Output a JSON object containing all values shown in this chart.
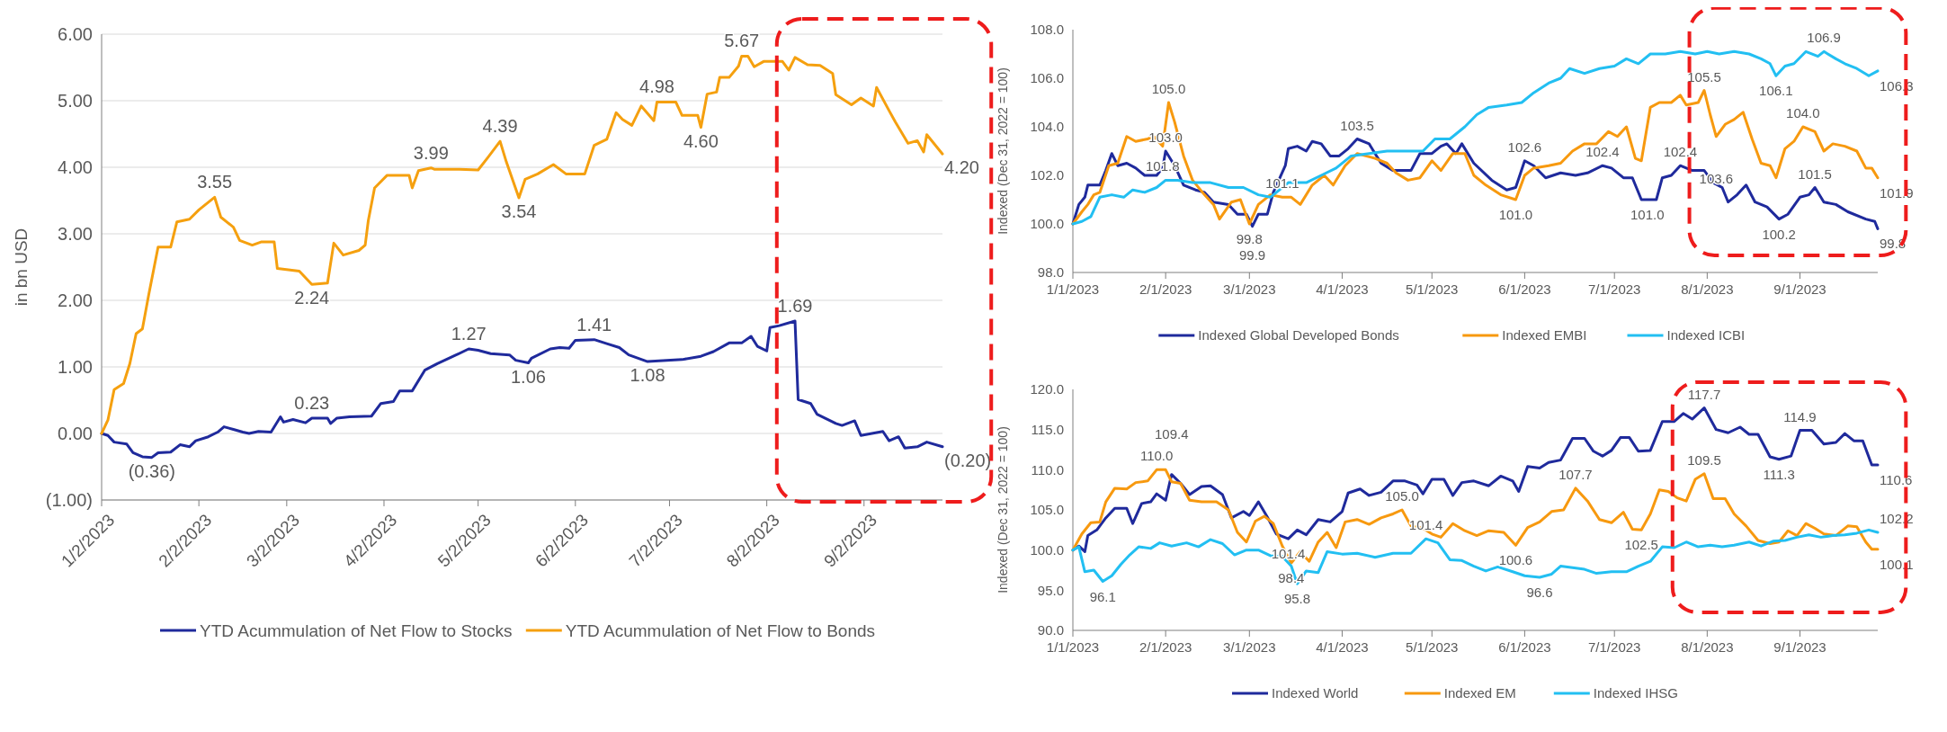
{
  "chart_data": [
    {
      "type": "line",
      "ylabel": "in bn USD",
      "xlim": [
        "2023-01-02",
        "2023-09-27"
      ],
      "ylim": [
        -1,
        6
      ],
      "xticks": [
        {
          "value": "2023-01-02",
          "label": "1/2/2023"
        },
        {
          "value": "2023-02-02",
          "label": "2/2/2023"
        },
        {
          "value": "2023-03-02",
          "label": "3/2/2023"
        },
        {
          "value": "2023-04-02",
          "label": "4/2/2023"
        },
        {
          "value": "2023-05-02",
          "label": "5/2/2023"
        },
        {
          "value": "2023-06-02",
          "label": "6/2/2023"
        },
        {
          "value": "2023-07-02",
          "label": "7/2/2023"
        },
        {
          "value": "2023-08-02",
          "label": "8/2/2023"
        },
        {
          "value": "2023-09-02",
          "label": "9/2/2023"
        }
      ],
      "yticks": [
        {
          "value": -1,
          "label": "(1.00)"
        },
        {
          "value": 0,
          "label": "0.00"
        },
        {
          "value": 1,
          "label": "1.00"
        },
        {
          "value": 2,
          "label": "2.00"
        },
        {
          "value": 3,
          "label": "3.00"
        },
        {
          "value": 4,
          "label": "4.00"
        },
        {
          "value": 5,
          "label": "5.00"
        },
        {
          "value": 6,
          "label": "6.00"
        }
      ],
      "grid": "y",
      "legend": "bottom",
      "series": [
        {
          "name": "YTD Acummulation of Net Flow to Stocks",
          "color": "#1f2a9c",
          "x": [
            "2023-01-02",
            "2023-01-04",
            "2023-01-06",
            "2023-01-10",
            "2023-01-12",
            "2023-01-15",
            "2023-01-18",
            "2023-01-20",
            "2023-01-24",
            "2023-01-27",
            "2023-01-30",
            "2023-02-01",
            "2023-02-05",
            "2023-02-08",
            "2023-02-10",
            "2023-02-13",
            "2023-02-16",
            "2023-02-18",
            "2023-02-21",
            "2023-02-25",
            "2023-02-28",
            "2023-03-01",
            "2023-03-04",
            "2023-03-08",
            "2023-03-10",
            "2023-03-15",
            "2023-03-16",
            "2023-03-18",
            "2023-03-22",
            "2023-03-29",
            "2023-04-01",
            "2023-04-05",
            "2023-04-07",
            "2023-04-11",
            "2023-04-15",
            "2023-04-19",
            "2023-04-25",
            "2023-04-29",
            "2023-05-02",
            "2023-05-06",
            "2023-05-12",
            "2023-05-14",
            "2023-05-18",
            "2023-05-19",
            "2023-05-25",
            "2023-05-28",
            "2023-05-31",
            "2023-06-02",
            "2023-06-08",
            "2023-06-12",
            "2023-06-16",
            "2023-06-19",
            "2023-06-25",
            "2023-07-06",
            "2023-07-12",
            "2023-07-16",
            "2023-07-21",
            "2023-07-25",
            "2023-07-28",
            "2023-07-30",
            "2023-08-02",
            "2023-08-03",
            "2023-08-06",
            "2023-08-11",
            "2023-08-12",
            "2023-08-16",
            "2023-08-18",
            "2023-08-24",
            "2023-08-26",
            "2023-08-30",
            "2023-09-01",
            "2023-09-08",
            "2023-09-10",
            "2023-09-13",
            "2023-09-15",
            "2023-09-19",
            "2023-09-22",
            "2023-09-27"
          ],
          "values": [
            0,
            -0.03,
            -0.13,
            -0.16,
            -0.29,
            -0.35,
            -0.36,
            -0.29,
            -0.28,
            -0.17,
            -0.2,
            -0.11,
            -0.05,
            0.02,
            0.1,
            0.06,
            0.02,
            0,
            0.03,
            0.02,
            0.25,
            0.17,
            0.21,
            0.16,
            0.23,
            0.23,
            0.15,
            0.23,
            0.25,
            0.26,
            0.45,
            0.48,
            0.64,
            0.64,
            0.95,
            1.05,
            1.18,
            1.27,
            1.25,
            1.2,
            1.18,
            1.1,
            1.06,
            1.13,
            1.27,
            1.29,
            1.28,
            1.4,
            1.41,
            1.35,
            1.29,
            1.18,
            1.08,
            1.11,
            1.16,
            1.23,
            1.36,
            1.36,
            1.46,
            1.31,
            1.24,
            1.59,
            1.62,
            1.69,
            0.51,
            0.45,
            0.29,
            0.15,
            0.12,
            0.19,
            -0.03,
            0.03,
            -0.11,
            -0.05,
            -0.22,
            -0.2,
            -0.13,
            -0.2
          ]
        },
        {
          "name": "YTD Acummulation of Net Flow to Bonds",
          "color": "#f5a00f",
          "x": [
            "2023-01-02",
            "2023-01-04",
            "2023-01-06",
            "2023-01-09",
            "2023-01-11",
            "2023-01-13",
            "2023-01-15",
            "2023-01-17",
            "2023-01-20",
            "2023-01-24",
            "2023-01-26",
            "2023-01-30",
            "2023-02-02",
            "2023-02-07",
            "2023-02-09",
            "2023-02-13",
            "2023-02-15",
            "2023-02-19",
            "2023-02-22",
            "2023-02-26",
            "2023-02-27",
            "2023-03-06",
            "2023-03-10",
            "2023-03-15",
            "2023-03-17",
            "2023-03-20",
            "2023-03-25",
            "2023-03-27",
            "2023-03-28",
            "2023-03-30",
            "2023-04-03",
            "2023-04-10",
            "2023-04-11",
            "2023-04-13",
            "2023-04-17",
            "2023-04-18",
            "2023-04-26",
            "2023-05-02",
            "2023-05-05",
            "2023-05-09",
            "2023-05-11",
            "2023-05-15",
            "2023-05-17",
            "2023-05-21",
            "2023-05-26",
            "2023-05-30",
            "2023-06-05",
            "2023-06-08",
            "2023-06-12",
            "2023-06-15",
            "2023-06-17",
            "2023-06-20",
            "2023-06-23",
            "2023-06-27",
            "2023-06-28",
            "2023-07-04",
            "2023-07-06",
            "2023-07-11",
            "2023-07-12",
            "2023-07-14",
            "2023-07-17",
            "2023-07-18",
            "2023-07-21",
            "2023-07-24",
            "2023-07-25",
            "2023-07-27",
            "2023-07-29",
            "2023-08-01",
            "2023-08-07",
            "2023-08-09",
            "2023-08-11",
            "2023-08-15",
            "2023-08-19",
            "2023-08-23",
            "2023-08-24",
            "2023-08-29",
            "2023-09-01",
            "2023-09-05",
            "2023-09-06",
            "2023-09-10",
            "2023-09-12",
            "2023-09-16",
            "2023-09-19",
            "2023-09-21",
            "2023-09-22",
            "2023-09-27"
          ],
          "values": [
            0,
            0.2,
            0.66,
            0.75,
            1.05,
            1.5,
            1.57,
            2.08,
            2.8,
            2.8,
            3.18,
            3.22,
            3.36,
            3.55,
            3.25,
            3.1,
            2.9,
            2.83,
            2.88,
            2.88,
            2.48,
            2.44,
            2.24,
            2.26,
            2.86,
            2.68,
            2.75,
            2.83,
            3.2,
            3.69,
            3.88,
            3.88,
            3.69,
            3.95,
            3.99,
            3.97,
            3.97,
            3.96,
            4.14,
            4.39,
            4.08,
            3.54,
            3.82,
            3.9,
            4.04,
            3.9,
            3.9,
            4.33,
            4.42,
            4.82,
            4.72,
            4.63,
            4.92,
            4.7,
            4.98,
            4.98,
            4.78,
            4.78,
            4.6,
            5.1,
            5.13,
            5.35,
            5.35,
            5.52,
            5.67,
            5.67,
            5.51,
            5.59,
            5.59,
            5.46,
            5.65,
            5.54,
            5.53,
            5.41,
            5.09,
            4.94,
            5.04,
            4.92,
            5.2,
            4.85,
            4.68,
            4.36,
            4.4,
            4.23,
            4.49,
            4.2
          ]
        }
      ],
      "annotations": [
        {
          "text": "3.55",
          "x": "2023-02-07",
          "y": 3.55
        },
        {
          "text": "2.24",
          "x": "2023-03-10",
          "y": 2.24
        },
        {
          "text": "3.99",
          "x": "2023-04-17",
          "y": 3.99
        },
        {
          "text": "4.39",
          "x": "2023-05-09",
          "y": 4.39
        },
        {
          "text": "3.54",
          "x": "2023-05-15",
          "y": 3.54
        },
        {
          "text": "4.98",
          "x": "2023-06-28",
          "y": 4.98
        },
        {
          "text": "4.60",
          "x": "2023-07-12",
          "y": 4.6
        },
        {
          "text": "5.67",
          "x": "2023-07-25",
          "y": 5.67
        },
        {
          "text": "4.20",
          "x": "2023-09-27",
          "y": 4.2
        },
        {
          "text": "(0.36)",
          "x": "2023-01-18",
          "y": -0.36
        },
        {
          "text": "0.23",
          "x": "2023-03-10",
          "y": 0.23
        },
        {
          "text": "1.27",
          "x": "2023-04-29",
          "y": 1.27
        },
        {
          "text": "1.06",
          "x": "2023-05-18",
          "y": 1.06
        },
        {
          "text": "1.41",
          "x": "2023-06-08",
          "y": 1.41
        },
        {
          "text": "1.08",
          "x": "2023-06-25",
          "y": 1.08
        },
        {
          "text": "1.69",
          "x": "2023-08-11",
          "y": 1.69
        },
        {
          "text": "(0.20)",
          "x": "2023-09-27",
          "y": -0.2
        }
      ]
    },
    {
      "type": "line",
      "ylabel": "Indexed (Dec 31, 2022 = 100)",
      "xlim": [
        "2023-01-01",
        "2023-09-27"
      ],
      "ylim": [
        98,
        108
      ],
      "xticks": [
        {
          "value": "2023-01-01",
          "label": "1/1/2023"
        },
        {
          "value": "2023-02-01",
          "label": "2/1/2023"
        },
        {
          "value": "2023-03-01",
          "label": "3/1/2023"
        },
        {
          "value": "2023-04-01",
          "label": "4/1/2023"
        },
        {
          "value": "2023-05-01",
          "label": "5/1/2023"
        },
        {
          "value": "2023-06-01",
          "label": "6/1/2023"
        },
        {
          "value": "2023-07-01",
          "label": "7/1/2023"
        },
        {
          "value": "2023-08-01",
          "label": "8/1/2023"
        },
        {
          "value": "2023-09-01",
          "label": "9/1/2023"
        }
      ],
      "yticks": [
        {
          "value": 98,
          "label": "98.0"
        },
        {
          "value": 100,
          "label": "100.0"
        },
        {
          "value": 102,
          "label": "102.0"
        },
        {
          "value": 104,
          "label": "104.0"
        },
        {
          "value": 106,
          "label": "106.0"
        },
        {
          "value": 108,
          "label": "108.0"
        }
      ],
      "legend": "bottom",
      "series": [
        {
          "name": "Indexed Global Developed Bonds",
          "color": "#1f2a9c",
          "x": [
            "2023-01-01",
            "2023-01-03",
            "2023-01-05",
            "2023-01-06",
            "2023-01-10",
            "2023-01-12",
            "2023-01-14",
            "2023-01-16",
            "2023-01-19",
            "2023-01-22",
            "2023-01-25",
            "2023-01-29",
            "2023-01-31",
            "2023-02-01",
            "2023-02-04",
            "2023-02-07",
            "2023-02-11",
            "2023-02-14",
            "2023-02-17",
            "2023-02-22",
            "2023-02-25",
            "2023-02-28",
            "2023-03-02",
            "2023-03-04",
            "2023-03-07",
            "2023-03-09",
            "2023-03-13",
            "2023-03-14",
            "2023-03-17",
            "2023-03-20",
            "2023-03-22",
            "2023-03-25",
            "2023-03-28",
            "2023-03-31",
            "2023-04-03",
            "2023-04-06",
            "2023-04-10",
            "2023-04-14",
            "2023-04-18",
            "2023-04-24",
            "2023-04-27",
            "2023-05-01",
            "2023-05-04",
            "2023-05-06",
            "2023-05-09",
            "2023-05-11",
            "2023-05-15",
            "2023-05-21",
            "2023-05-26",
            "2023-05-29",
            "2023-06-01",
            "2023-06-04",
            "2023-06-08",
            "2023-06-13",
            "2023-06-18",
            "2023-06-22",
            "2023-06-27",
            "2023-06-30",
            "2023-07-04",
            "2023-07-07",
            "2023-07-10",
            "2023-07-15",
            "2023-07-17",
            "2023-07-20",
            "2023-07-23",
            "2023-07-27",
            "2023-07-31",
            "2023-08-03",
            "2023-08-06",
            "2023-08-08",
            "2023-08-11",
            "2023-08-14",
            "2023-08-17",
            "2023-08-21",
            "2023-08-25",
            "2023-08-28",
            "2023-09-01",
            "2023-09-04",
            "2023-09-06",
            "2023-09-09",
            "2023-09-13",
            "2023-09-17",
            "2023-09-23",
            "2023-09-26",
            "2023-09-27"
          ],
          "values": [
            100,
            100.8,
            101.1,
            101.6,
            101.6,
            102.2,
            102.9,
            102.4,
            102.5,
            102.3,
            102,
            102,
            102.3,
            103,
            102.4,
            101.6,
            101.4,
            101.3,
            100.9,
            100.8,
            100.4,
            100.4,
            99.9,
            100.4,
            100.4,
            101.3,
            102.4,
            103.1,
            103.2,
            103,
            103.4,
            103.3,
            102.8,
            102.8,
            103.1,
            103.5,
            103.3,
            102.5,
            102.2,
            102.2,
            102.9,
            102.9,
            103.2,
            103.3,
            102.9,
            103.3,
            102.5,
            101.8,
            101.4,
            101.5,
            102.6,
            102.4,
            101.9,
            102.1,
            102,
            102.1,
            102.4,
            102.3,
            101.9,
            101.9,
            101,
            101,
            101.9,
            102,
            102.4,
            102.2,
            102.2,
            101.7,
            101.5,
            100.9,
            101.2,
            101.6,
            100.9,
            100.7,
            100.2,
            100.4,
            101.1,
            101.2,
            101.5,
            100.9,
            100.8,
            100.5,
            100.2,
            100.1,
            99.8
          ]
        },
        {
          "name": "Indexed EMBI",
          "color": "#f7990f",
          "x": [
            "2023-01-01",
            "2023-01-04",
            "2023-01-06",
            "2023-01-08",
            "2023-01-10",
            "2023-01-13",
            "2023-01-16",
            "2023-01-19",
            "2023-01-22",
            "2023-01-26",
            "2023-01-28",
            "2023-01-31",
            "2023-02-02",
            "2023-02-04",
            "2023-02-07",
            "2023-02-10",
            "2023-02-14",
            "2023-02-17",
            "2023-02-19",
            "2023-02-23",
            "2023-02-26",
            "2023-03-01",
            "2023-03-04",
            "2023-03-08",
            "2023-03-12",
            "2023-03-15",
            "2023-03-18",
            "2023-03-22",
            "2023-03-26",
            "2023-03-29",
            "2023-04-02",
            "2023-04-06",
            "2023-04-12",
            "2023-04-16",
            "2023-04-19",
            "2023-04-23",
            "2023-04-27",
            "2023-05-01",
            "2023-05-04",
            "2023-05-08",
            "2023-05-12",
            "2023-05-15",
            "2023-05-19",
            "2023-05-24",
            "2023-05-29",
            "2023-06-01",
            "2023-06-04",
            "2023-06-09",
            "2023-06-13",
            "2023-06-17",
            "2023-06-21",
            "2023-06-25",
            "2023-06-29",
            "2023-07-02",
            "2023-07-05",
            "2023-07-08",
            "2023-07-10",
            "2023-07-13",
            "2023-07-16",
            "2023-07-20",
            "2023-07-23",
            "2023-07-25",
            "2023-07-29",
            "2023-07-31",
            "2023-08-02",
            "2023-08-04",
            "2023-08-07",
            "2023-08-10",
            "2023-08-13",
            "2023-08-16",
            "2023-08-19",
            "2023-08-22",
            "2023-08-24",
            "2023-08-27",
            "2023-08-30",
            "2023-09-02",
            "2023-09-06",
            "2023-09-09",
            "2023-09-12",
            "2023-09-16",
            "2023-09-20",
            "2023-09-23",
            "2023-09-25",
            "2023-09-27"
          ],
          "values": [
            100,
            100.5,
            100.8,
            101.2,
            101.3,
            102.4,
            102.5,
            103.6,
            103.4,
            103.5,
            103.6,
            103.2,
            105,
            104.2,
            102.8,
            101.8,
            101.2,
            100.8,
            100.2,
            100.9,
            101,
            100,
            100.8,
            101.2,
            101.1,
            101.1,
            100.8,
            101.6,
            102,
            101.6,
            102.4,
            102.9,
            102.7,
            102.5,
            102.1,
            101.8,
            101.9,
            102.6,
            102.2,
            102.9,
            102.9,
            102,
            101.6,
            101.2,
            101,
            102,
            102.3,
            102.4,
            102.5,
            103,
            103.3,
            103.3,
            103.8,
            103.6,
            104,
            102.7,
            102.6,
            104.8,
            105,
            105,
            105.3,
            104.9,
            105,
            105.5,
            104.5,
            103.6,
            104.1,
            104.3,
            104.6,
            103.5,
            102.5,
            102.4,
            101.9,
            103.1,
            103.4,
            104,
            103.8,
            103,
            103.3,
            103.2,
            103,
            102.3,
            102.3,
            101.9
          ]
        },
        {
          "name": "Indexed ICBI",
          "color": "#22bff2",
          "x": [
            "2023-01-01",
            "2023-01-04",
            "2023-01-07",
            "2023-01-10",
            "2023-01-14",
            "2023-01-18",
            "2023-01-21",
            "2023-01-25",
            "2023-01-29",
            "2023-02-01",
            "2023-02-05",
            "2023-02-10",
            "2023-02-16",
            "2023-02-22",
            "2023-02-27",
            "2023-03-04",
            "2023-03-08",
            "2023-03-14",
            "2023-03-20",
            "2023-03-25",
            "2023-03-30",
            "2023-04-04",
            "2023-04-10",
            "2023-04-16",
            "2023-04-22",
            "2023-04-28",
            "2023-05-02",
            "2023-05-07",
            "2023-05-12",
            "2023-05-16",
            "2023-05-20",
            "2023-05-26",
            "2023-05-31",
            "2023-06-04",
            "2023-06-09",
            "2023-06-13",
            "2023-06-16",
            "2023-06-21",
            "2023-06-26",
            "2023-07-01",
            "2023-07-05",
            "2023-07-09",
            "2023-07-13",
            "2023-07-18",
            "2023-07-23",
            "2023-07-28",
            "2023-08-01",
            "2023-08-05",
            "2023-08-10",
            "2023-08-15",
            "2023-08-19",
            "2023-08-22",
            "2023-08-24",
            "2023-08-27",
            "2023-08-30",
            "2023-09-03",
            "2023-09-07",
            "2023-09-09",
            "2023-09-13",
            "2023-09-16",
            "2023-09-20",
            "2023-09-24",
            "2023-09-27"
          ],
          "values": [
            100,
            100.1,
            100.3,
            101.1,
            101.2,
            101.1,
            101.4,
            101.3,
            101.5,
            101.8,
            101.8,
            101.7,
            101.7,
            101.5,
            101.5,
            101.2,
            101.1,
            101.7,
            101.7,
            102,
            102.3,
            102.8,
            102.9,
            103,
            103,
            103,
            103.5,
            103.5,
            104,
            104.5,
            104.8,
            104.9,
            105,
            105.4,
            105.8,
            106,
            106.4,
            106.2,
            106.4,
            106.5,
            106.8,
            106.6,
            107,
            107,
            107.1,
            107,
            107.1,
            107,
            107.1,
            107,
            106.8,
            106.6,
            106.1,
            106.5,
            106.6,
            107.1,
            106.9,
            107.1,
            106.8,
            106.6,
            106.4,
            106.1,
            106.3
          ]
        }
      ],
      "annotations": [
        {
          "text": "105.0",
          "x": "2023-02-02",
          "y": 105
        },
        {
          "text": "103.0",
          "x": "2023-02-01",
          "y": 103
        },
        {
          "text": "101.8",
          "x": "2023-01-31",
          "y": 101.8
        },
        {
          "text": "99.8",
          "x": "2023-03-01",
          "y": 100
        },
        {
          "text": "99.9",
          "x": "2023-03-02",
          "y": 99.9
        },
        {
          "text": "101.1",
          "x": "2023-03-12",
          "y": 101.1
        },
        {
          "text": "103.5",
          "x": "2023-04-06",
          "y": 103.5
        },
        {
          "text": "102.6",
          "x": "2023-06-01",
          "y": 102.6
        },
        {
          "text": "101.0",
          "x": "2023-05-29",
          "y": 101
        },
        {
          "text": "102.4",
          "x": "2023-06-27",
          "y": 102.4
        },
        {
          "text": "101.0",
          "x": "2023-07-12",
          "y": 101
        },
        {
          "text": "102.4",
          "x": "2023-07-23",
          "y": 102.4
        },
        {
          "text": "105.5",
          "x": "2023-07-31",
          "y": 105.5
        },
        {
          "text": "103.6",
          "x": "2023-08-04",
          "y": 103.6
        },
        {
          "text": "106.9",
          "x": "2023-09-09",
          "y": 107.1
        },
        {
          "text": "106.1",
          "x": "2023-08-24",
          "y": 106.1
        },
        {
          "text": "101.5",
          "x": "2023-09-06",
          "y": 101.5
        },
        {
          "text": "104.0",
          "x": "2023-09-02",
          "y": 104
        },
        {
          "text": "100.2",
          "x": "2023-08-25",
          "y": 100.2
        },
        {
          "text": "106.3",
          "x": "2023-09-27",
          "y": 106.3
        },
        {
          "text": "101.9",
          "x": "2023-09-27",
          "y": 101.9
        },
        {
          "text": "99.8",
          "x": "2023-09-27",
          "y": 99.8
        }
      ]
    },
    {
      "type": "line",
      "ylabel": "Indexed (Dec 31, 2022 = 100)",
      "xlim": [
        "2023-01-01",
        "2023-09-27"
      ],
      "ylim": [
        90,
        120
      ],
      "xticks": [
        {
          "value": "2023-01-01",
          "label": "1/1/2023"
        },
        {
          "value": "2023-02-01",
          "label": "2/1/2023"
        },
        {
          "value": "2023-03-01",
          "label": "3/1/2023"
        },
        {
          "value": "2023-04-01",
          "label": "4/1/2023"
        },
        {
          "value": "2023-05-01",
          "label": "5/1/2023"
        },
        {
          "value": "2023-06-01",
          "label": "6/1/2023"
        },
        {
          "value": "2023-07-01",
          "label": "7/1/2023"
        },
        {
          "value": "2023-08-01",
          "label": "8/1/2023"
        },
        {
          "value": "2023-09-01",
          "label": "9/1/2023"
        }
      ],
      "yticks": [
        {
          "value": 90,
          "label": "90.0"
        },
        {
          "value": 95,
          "label": "95.0"
        },
        {
          "value": 100,
          "label": "100.0"
        },
        {
          "value": 105,
          "label": "105.0"
        },
        {
          "value": 110,
          "label": "110.0"
        },
        {
          "value": 115,
          "label": "115.0"
        },
        {
          "value": 120,
          "label": "120.0"
        }
      ],
      "legend": "bottom",
      "series": [
        {
          "name": "Indexed World",
          "color": "#1f2a9c",
          "x": [
            "2023-01-01",
            "2023-01-03",
            "2023-01-05",
            "2023-01-06",
            "2023-01-09",
            "2023-01-12",
            "2023-01-15",
            "2023-01-19",
            "2023-01-21",
            "2023-01-24",
            "2023-01-27",
            "2023-01-29",
            "2023-02-01",
            "2023-02-03",
            "2023-02-06",
            "2023-02-09",
            "2023-02-13",
            "2023-02-16",
            "2023-02-20",
            "2023-02-23",
            "2023-02-27",
            "2023-03-01",
            "2023-03-04",
            "2023-03-07",
            "2023-03-10",
            "2023-03-14",
            "2023-03-17",
            "2023-03-20",
            "2023-03-24",
            "2023-03-28",
            "2023-04-01",
            "2023-04-03",
            "2023-04-07",
            "2023-04-10",
            "2023-04-14",
            "2023-04-18",
            "2023-04-22",
            "2023-04-26",
            "2023-04-28",
            "2023-05-01",
            "2023-05-05",
            "2023-05-08",
            "2023-05-11",
            "2023-05-15",
            "2023-05-20",
            "2023-05-24",
            "2023-05-28",
            "2023-05-30",
            "2023-06-02",
            "2023-06-06",
            "2023-06-09",
            "2023-06-13",
            "2023-06-17",
            "2023-06-21",
            "2023-06-24",
            "2023-06-27",
            "2023-06-30",
            "2023-07-03",
            "2023-07-06",
            "2023-07-09",
            "2023-07-13",
            "2023-07-17",
            "2023-07-21",
            "2023-07-24",
            "2023-07-27",
            "2023-07-31",
            "2023-08-04",
            "2023-08-08",
            "2023-08-12",
            "2023-08-15",
            "2023-08-18",
            "2023-08-22",
            "2023-08-25",
            "2023-08-29",
            "2023-09-01",
            "2023-09-05",
            "2023-09-09",
            "2023-09-13",
            "2023-09-16",
            "2023-09-19",
            "2023-09-22",
            "2023-09-25",
            "2023-09-27"
          ],
          "values": [
            100,
            100.5,
            99.8,
            101.8,
            102.5,
            104,
            105.2,
            105.2,
            103.3,
            105.8,
            106,
            107,
            106.2,
            109.4,
            108.3,
            106.9,
            107.9,
            108,
            106.9,
            104,
            104.8,
            104.3,
            106,
            104.1,
            102,
            101.4,
            102.5,
            101.9,
            103.8,
            103.5,
            104.8,
            107.1,
            107.6,
            106.8,
            107.2,
            108.6,
            108.6,
            108.1,
            107,
            108.8,
            108.8,
            106.8,
            108.4,
            108.6,
            108,
            109.2,
            108.6,
            107.3,
            110.4,
            110.2,
            110.9,
            111.2,
            113.9,
            113.9,
            112.3,
            111.7,
            112.4,
            114,
            114,
            112.3,
            112.4,
            116,
            116,
            117,
            116.3,
            117.7,
            115,
            114.6,
            115.3,
            114.4,
            114.4,
            111.6,
            111.3,
            111.7,
            114.9,
            114.9,
            113.2,
            113.4,
            114.5,
            113.6,
            113.6,
            110.6,
            110.6
          ]
        },
        {
          "name": "Indexed EM",
          "color": "#f7990f",
          "x": [
            "2023-01-01",
            "2023-01-04",
            "2023-01-07",
            "2023-01-10",
            "2023-01-12",
            "2023-01-15",
            "2023-01-19",
            "2023-01-22",
            "2023-01-26",
            "2023-01-29",
            "2023-02-01",
            "2023-02-03",
            "2023-02-06",
            "2023-02-09",
            "2023-02-13",
            "2023-02-18",
            "2023-02-22",
            "2023-02-25",
            "2023-02-28",
            "2023-03-03",
            "2023-03-06",
            "2023-03-09",
            "2023-03-12",
            "2023-03-15",
            "2023-03-18",
            "2023-03-21",
            "2023-03-24",
            "2023-03-27",
            "2023-03-30",
            "2023-04-02",
            "2023-04-06",
            "2023-04-10",
            "2023-04-14",
            "2023-04-18",
            "2023-04-21",
            "2023-04-24",
            "2023-04-28",
            "2023-05-01",
            "2023-05-04",
            "2023-05-08",
            "2023-05-12",
            "2023-05-16",
            "2023-05-20",
            "2023-05-25",
            "2023-05-29",
            "2023-06-02",
            "2023-06-06",
            "2023-06-10",
            "2023-06-14",
            "2023-06-18",
            "2023-06-22",
            "2023-06-26",
            "2023-06-30",
            "2023-07-04",
            "2023-07-07",
            "2023-07-10",
            "2023-07-13",
            "2023-07-16",
            "2023-07-19",
            "2023-07-22",
            "2023-07-25",
            "2023-07-28",
            "2023-07-31",
            "2023-08-03",
            "2023-08-07",
            "2023-08-10",
            "2023-08-14",
            "2023-08-18",
            "2023-08-22",
            "2023-08-25",
            "2023-08-28",
            "2023-08-31",
            "2023-09-03",
            "2023-09-06",
            "2023-09-09",
            "2023-09-13",
            "2023-09-17",
            "2023-09-20",
            "2023-09-23",
            "2023-09-25",
            "2023-09-27"
          ],
          "values": [
            100,
            102,
            103.4,
            103.5,
            106,
            107.7,
            107.6,
            108.4,
            108.6,
            110,
            110,
            108.5,
            108.3,
            106.2,
            106,
            106,
            105,
            102.2,
            101,
            103.6,
            104.2,
            103.3,
            100.5,
            98.4,
            99.8,
            98.6,
            101,
            102.2,
            100.3,
            103.5,
            103.8,
            103.2,
            104,
            104.5,
            105,
            103,
            102.7,
            102,
            101.6,
            103.3,
            102.4,
            101.8,
            102.4,
            102.2,
            100.6,
            102.8,
            103.5,
            104.8,
            105,
            107.7,
            106.1,
            103.8,
            103.4,
            104.7,
            102.6,
            102.5,
            104.5,
            107.5,
            107.3,
            106.5,
            106.1,
            108.8,
            109.5,
            106.4,
            106.4,
            104.5,
            103,
            101.2,
            100.8,
            101,
            102.4,
            101.8,
            103.3,
            102.7,
            102,
            101.8,
            103,
            102.9,
            101,
            100.1,
            100.1
          ]
        },
        {
          "name": "Indexed IHSG",
          "color": "#22bff2",
          "x": [
            "2023-01-01",
            "2023-01-03",
            "2023-01-05",
            "2023-01-08",
            "2023-01-11",
            "2023-01-14",
            "2023-01-17",
            "2023-01-20",
            "2023-01-23",
            "2023-01-27",
            "2023-01-30",
            "2023-02-03",
            "2023-02-08",
            "2023-02-12",
            "2023-02-16",
            "2023-02-20",
            "2023-02-24",
            "2023-02-28",
            "2023-03-04",
            "2023-03-08",
            "2023-03-12",
            "2023-03-15",
            "2023-03-17",
            "2023-03-20",
            "2023-03-24",
            "2023-03-27",
            "2023-04-01",
            "2023-04-06",
            "2023-04-12",
            "2023-04-18",
            "2023-04-24",
            "2023-04-29",
            "2023-05-03",
            "2023-05-07",
            "2023-05-11",
            "2023-05-15",
            "2023-05-19",
            "2023-05-23",
            "2023-05-28",
            "2023-06-01",
            "2023-06-06",
            "2023-06-10",
            "2023-06-13",
            "2023-06-17",
            "2023-06-21",
            "2023-06-25",
            "2023-06-30",
            "2023-07-05",
            "2023-07-09",
            "2023-07-13",
            "2023-07-17",
            "2023-07-21",
            "2023-07-25",
            "2023-07-29",
            "2023-08-02",
            "2023-08-06",
            "2023-08-10",
            "2023-08-15",
            "2023-08-19",
            "2023-08-23",
            "2023-08-27",
            "2023-08-31",
            "2023-09-04",
            "2023-09-08",
            "2023-09-12",
            "2023-09-16",
            "2023-09-20",
            "2023-09-24",
            "2023-09-27"
          ],
          "values": [
            100,
            100.4,
            97.3,
            97.5,
            96.1,
            96.8,
            98.2,
            99.4,
            100.4,
            100.2,
            100.9,
            100.5,
            100.9,
            100.4,
            101.3,
            100.8,
            99.4,
            100,
            100,
            99.3,
            99.2,
            98,
            95.8,
            97.4,
            97.2,
            99.8,
            99.5,
            99.6,
            99.1,
            99.6,
            99.6,
            101.4,
            100.9,
            98.8,
            98.7,
            98,
            97.4,
            97.9,
            97.3,
            96.8,
            96.6,
            97,
            98,
            97.8,
            97.6,
            97.1,
            97.3,
            97.3,
            98,
            98.6,
            100.4,
            100.3,
            101,
            100.4,
            100.6,
            100.4,
            100.6,
            101,
            100.5,
            101.1,
            101.2,
            101.6,
            101.9,
            101.6,
            101.8,
            101.9,
            102.1,
            102.5,
            102.2
          ]
        }
      ],
      "annotations": [
        {
          "text": "110.0",
          "x": "2023-01-29",
          "y": 110
        },
        {
          "text": "109.4",
          "x": "2023-02-03",
          "y": 109.4
        },
        {
          "text": "101.4",
          "x": "2023-03-14",
          "y": 101.4
        },
        {
          "text": "98.4",
          "x": "2023-03-15",
          "y": 98.4
        },
        {
          "text": "95.8",
          "x": "2023-03-17",
          "y": 95.8
        },
        {
          "text": "96.1",
          "x": "2023-01-11",
          "y": 96.1
        },
        {
          "text": "105.0",
          "x": "2023-04-21",
          "y": 105
        },
        {
          "text": "101.4",
          "x": "2023-04-29",
          "y": 101.4
        },
        {
          "text": "107.7",
          "x": "2023-06-18",
          "y": 107.7
        },
        {
          "text": "100.6",
          "x": "2023-05-29",
          "y": 100.6
        },
        {
          "text": "96.6",
          "x": "2023-06-06",
          "y": 96.6
        },
        {
          "text": "102.5",
          "x": "2023-07-10",
          "y": 102.5
        },
        {
          "text": "117.7",
          "x": "2023-07-31",
          "y": 117.7
        },
        {
          "text": "109.5",
          "x": "2023-07-31",
          "y": 109.5
        },
        {
          "text": "111.3",
          "x": "2023-08-25",
          "y": 111.3
        },
        {
          "text": "114.9",
          "x": "2023-09-01",
          "y": 114.9
        },
        {
          "text": "110.6",
          "x": "2023-09-27",
          "y": 110.6
        },
        {
          "text": "102.2",
          "x": "2023-09-27",
          "y": 102.2
        },
        {
          "text": "100.1",
          "x": "2023-09-27",
          "y": 100.1
        }
      ]
    }
  ]
}
